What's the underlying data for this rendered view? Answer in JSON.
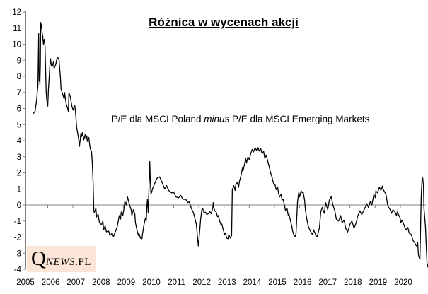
{
  "title": "Różnica w wycenach akcji",
  "annotation": {
    "prefix": "P/E dla MSCI Poland ",
    "emphasis": "minus",
    "suffix": " P/E dla MSCI Emerging Markets"
  },
  "logo": {
    "initial": "Q",
    "name": "NEWS",
    "tld": ".PL"
  },
  "colors": {
    "line": "#000000",
    "axis": "#808080",
    "zero_line": "#808080",
    "tick_label": "#000000",
    "logo_bg": "#FBE5D6",
    "background": "#FFFFFF"
  },
  "chart_data": {
    "type": "line",
    "title": "Różnica w wycenach akcji",
    "annotation": "P/E dla MSCI Poland minus P/E dla MSCI Emerging Markets",
    "legend": "none",
    "grid": "zero-line-only",
    "x_axis": {
      "labels": [
        "2005",
        "2006",
        "2007",
        "2008",
        "2009",
        "2010",
        "2011",
        "2012",
        "2013",
        "2014",
        "2015",
        "2016",
        "2017",
        "2018",
        "2019",
        "2020"
      ],
      "range": [
        2005.0,
        2021.0
      ]
    },
    "y_axis": {
      "min": -4,
      "max": 12,
      "step": 1,
      "labels": [
        12,
        11,
        10,
        9,
        8,
        7,
        6,
        5,
        4,
        3,
        2,
        1,
        0,
        -1,
        -2,
        -3,
        -4
      ]
    },
    "points": [
      [
        2005.31,
        5.7
      ],
      [
        2005.37,
        5.85
      ],
      [
        2005.39,
        6.1
      ],
      [
        2005.42,
        6.4
      ],
      [
        2005.45,
        6.9
      ],
      [
        2005.48,
        7.4
      ],
      [
        2005.51,
        10.65
      ],
      [
        2005.53,
        7.7
      ],
      [
        2005.55,
        8.3
      ],
      [
        2005.56,
        7.5
      ],
      [
        2005.58,
        8.8
      ],
      [
        2005.59,
        11.35
      ],
      [
        2005.62,
        11.15
      ],
      [
        2005.65,
        10.7
      ],
      [
        2005.67,
        10.5
      ],
      [
        2005.7,
        10.0
      ],
      [
        2005.73,
        10.3
      ],
      [
        2005.76,
        9.9
      ],
      [
        2005.79,
        8.2
      ],
      [
        2005.81,
        7.0
      ],
      [
        2005.84,
        6.4
      ],
      [
        2005.87,
        6.15
      ],
      [
        2005.9,
        7.2
      ],
      [
        2005.96,
        8.8
      ],
      [
        2005.98,
        9.1
      ],
      [
        2006.01,
        8.7
      ],
      [
        2006.04,
        8.6
      ],
      [
        2006.1,
        8.9
      ],
      [
        2006.12,
        8.5
      ],
      [
        2006.18,
        8.7
      ],
      [
        2006.21,
        8.9
      ],
      [
        2006.24,
        9.15
      ],
      [
        2006.26,
        9.2
      ],
      [
        2006.32,
        9.0
      ],
      [
        2006.38,
        7.8
      ],
      [
        2006.4,
        7.2
      ],
      [
        2006.46,
        6.9
      ],
      [
        2006.52,
        6.6
      ],
      [
        2006.54,
        7.0
      ],
      [
        2006.6,
        6.3
      ],
      [
        2006.66,
        6.0
      ],
      [
        2006.69,
        5.8
      ],
      [
        2006.71,
        7.0
      ],
      [
        2006.77,
        6.7
      ],
      [
        2006.8,
        6.4
      ],
      [
        2006.83,
        6.15
      ],
      [
        2006.88,
        5.9
      ],
      [
        2006.94,
        6.2
      ],
      [
        2006.97,
        5.85
      ],
      [
        2007.02,
        4.8
      ],
      [
        2007.08,
        4.3
      ],
      [
        2007.11,
        3.95
      ],
      [
        2007.13,
        3.65
      ],
      [
        2007.19,
        4.5
      ],
      [
        2007.22,
        4.25
      ],
      [
        2007.25,
        4.5
      ],
      [
        2007.3,
        4.05
      ],
      [
        2007.36,
        4.4
      ],
      [
        2007.39,
        4.1
      ],
      [
        2007.42,
        4.3
      ],
      [
        2007.44,
        3.95
      ],
      [
        2007.5,
        4.2
      ],
      [
        2007.53,
        3.8
      ],
      [
        2007.56,
        3.5
      ],
      [
        2007.61,
        3.3
      ],
      [
        2007.64,
        2.6
      ],
      [
        2007.67,
        1.4
      ],
      [
        2007.7,
        -0.3
      ],
      [
        2007.72,
        -0.5
      ],
      [
        2007.78,
        -0.2
      ],
      [
        2007.81,
        -0.75
      ],
      [
        2007.87,
        -0.57
      ],
      [
        2007.92,
        -1.1
      ],
      [
        2008.01,
        -1.23
      ],
      [
        2008.06,
        -1.0
      ],
      [
        2008.09,
        -1.54
      ],
      [
        2008.15,
        -1.3
      ],
      [
        2008.2,
        -1.67
      ],
      [
        2008.29,
        -1.62
      ],
      [
        2008.34,
        -1.9
      ],
      [
        2008.43,
        -1.75
      ],
      [
        2008.48,
        -1.97
      ],
      [
        2008.51,
        -1.84
      ],
      [
        2008.57,
        -1.6
      ],
      [
        2008.62,
        -1.4
      ],
      [
        2008.65,
        -1.18
      ],
      [
        2008.71,
        -0.66
      ],
      [
        2008.76,
        -0.88
      ],
      [
        2008.79,
        -0.44
      ],
      [
        2008.85,
        -0.66
      ],
      [
        2008.9,
        -0.22
      ],
      [
        2008.93,
        0.22
      ],
      [
        2008.99,
        0.0
      ],
      [
        2009.04,
        0.5
      ],
      [
        2009.1,
        0.1
      ],
      [
        2009.19,
        -0.35
      ],
      [
        2009.21,
        -0.66
      ],
      [
        2009.27,
        -0.3
      ],
      [
        2009.33,
        -0.57
      ],
      [
        2009.35,
        -1.1
      ],
      [
        2009.41,
        -1.54
      ],
      [
        2009.47,
        -1.9
      ],
      [
        2009.49,
        -1.75
      ],
      [
        2009.55,
        -2.06
      ],
      [
        2009.61,
        -2.1
      ],
      [
        2009.63,
        -1.84
      ],
      [
        2009.69,
        -1.23
      ],
      [
        2009.75,
        -0.8
      ],
      [
        2009.78,
        -1.0
      ],
      [
        2009.8,
        -0.22
      ],
      [
        2009.83,
        0.35
      ],
      [
        2009.86,
        -0.5
      ],
      [
        2009.92,
        2.7
      ],
      [
        2009.94,
        1.6
      ],
      [
        2009.97,
        0.66
      ],
      [
        2010.03,
        1.0
      ],
      [
        2010.11,
        1.3
      ],
      [
        2010.17,
        1.55
      ],
      [
        2010.22,
        1.68
      ],
      [
        2010.31,
        1.75
      ],
      [
        2010.37,
        1.55
      ],
      [
        2010.45,
        1.25
      ],
      [
        2010.51,
        1.0
      ],
      [
        2010.59,
        1.2
      ],
      [
        2010.67,
        0.9
      ],
      [
        2010.79,
        0.75
      ],
      [
        2010.87,
        0.8
      ],
      [
        2010.96,
        0.5
      ],
      [
        2011.07,
        0.45
      ],
      [
        2011.15,
        0.6
      ],
      [
        2011.24,
        0.35
      ],
      [
        2011.35,
        0.35
      ],
      [
        2011.43,
        0.15
      ],
      [
        2011.49,
        0.2
      ],
      [
        2011.57,
        -0.2
      ],
      [
        2011.66,
        -0.5
      ],
      [
        2011.74,
        -1.0
      ],
      [
        2011.77,
        -1.2
      ],
      [
        2011.83,
        -2.2
      ],
      [
        2011.85,
        -2.55
      ],
      [
        2011.91,
        -1.5
      ],
      [
        2011.94,
        -0.9
      ],
      [
        2011.99,
        -0.3
      ],
      [
        2012.02,
        -0.2
      ],
      [
        2012.08,
        -0.5
      ],
      [
        2012.13,
        -0.45
      ],
      [
        2012.19,
        -0.6
      ],
      [
        2012.25,
        -0.55
      ],
      [
        2012.3,
        -0.4
      ],
      [
        2012.36,
        -0.55
      ],
      [
        2012.42,
        -0.2
      ],
      [
        2012.44,
        0.15
      ],
      [
        2012.47,
        -0.2
      ],
      [
        2012.5,
        -0.35
      ],
      [
        2012.56,
        -0.44
      ],
      [
        2012.61,
        -0.73
      ],
      [
        2012.64,
        -0.66
      ],
      [
        2012.7,
        -1.0
      ],
      [
        2012.75,
        -1.23
      ],
      [
        2012.78,
        -1.18
      ],
      [
        2012.84,
        -1.54
      ],
      [
        2012.89,
        -1.84
      ],
      [
        2012.92,
        -1.75
      ],
      [
        2012.98,
        -2.06
      ],
      [
        2013.03,
        -2.1
      ],
      [
        2013.06,
        -1.84
      ],
      [
        2013.12,
        -2.06
      ],
      [
        2013.17,
        -1.9
      ],
      [
        2013.2,
        0.95
      ],
      [
        2013.26,
        1.2
      ],
      [
        2013.31,
        0.9
      ],
      [
        2013.34,
        1.25
      ],
      [
        2013.4,
        1.4
      ],
      [
        2013.45,
        1.1
      ],
      [
        2013.48,
        1.45
      ],
      [
        2013.54,
        1.8
      ],
      [
        2013.6,
        2.3
      ],
      [
        2013.62,
        2.1
      ],
      [
        2013.68,
        2.5
      ],
      [
        2013.73,
        2.9
      ],
      [
        2013.76,
        2.6
      ],
      [
        2013.82,
        3.0
      ],
      [
        2013.88,
        2.8
      ],
      [
        2013.93,
        3.2
      ],
      [
        2013.99,
        3.45
      ],
      [
        2014.04,
        3.3
      ],
      [
        2014.1,
        3.55
      ],
      [
        2014.16,
        3.4
      ],
      [
        2014.21,
        3.6
      ],
      [
        2014.27,
        3.35
      ],
      [
        2014.33,
        3.5
      ],
      [
        2014.38,
        3.2
      ],
      [
        2014.44,
        3.35
      ],
      [
        2014.49,
        2.9
      ],
      [
        2014.55,
        3.1
      ],
      [
        2014.61,
        2.7
      ],
      [
        2014.66,
        2.4
      ],
      [
        2014.72,
        2.0
      ],
      [
        2014.78,
        1.7
      ],
      [
        2014.8,
        1.54
      ],
      [
        2014.86,
        1.25
      ],
      [
        2014.89,
        1.3
      ],
      [
        2014.94,
        0.95
      ],
      [
        2015.0,
        1.1
      ],
      [
        2015.03,
        0.75
      ],
      [
        2015.08,
        0.5
      ],
      [
        2015.14,
        0.66
      ],
      [
        2015.17,
        0.3
      ],
      [
        2015.22,
        0.35
      ],
      [
        2015.28,
        -0.1
      ],
      [
        2015.31,
        -0.35
      ],
      [
        2015.37,
        -0.2
      ],
      [
        2015.42,
        -0.66
      ],
      [
        2015.45,
        -0.57
      ],
      [
        2015.51,
        -1.0
      ],
      [
        2015.56,
        -1.3
      ],
      [
        2015.59,
        -1.6
      ],
      [
        2015.65,
        -1.9
      ],
      [
        2015.7,
        -1.97
      ],
      [
        2015.73,
        -1.75
      ],
      [
        2015.79,
        0.22
      ],
      [
        2015.84,
        0.8
      ],
      [
        2015.87,
        0.5
      ],
      [
        2015.93,
        0.88
      ],
      [
        2015.98,
        0.75
      ],
      [
        2016.01,
        0.8
      ],
      [
        2016.07,
        0.3
      ],
      [
        2016.1,
        -0.3
      ],
      [
        2016.15,
        -0.8
      ],
      [
        2016.21,
        -1.3
      ],
      [
        2016.29,
        -1.6
      ],
      [
        2016.38,
        -1.84
      ],
      [
        2016.43,
        -1.55
      ],
      [
        2016.52,
        -1.9
      ],
      [
        2016.57,
        -1.97
      ],
      [
        2016.66,
        -1.4
      ],
      [
        2016.71,
        -0.44
      ],
      [
        2016.77,
        -0.15
      ],
      [
        2016.85,
        -0.52
      ],
      [
        2016.91,
        0.14
      ],
      [
        2016.99,
        -0.3
      ],
      [
        2017.05,
        0.3
      ],
      [
        2017.13,
        0.52
      ],
      [
        2017.19,
        0.0
      ],
      [
        2017.27,
        -0.36
      ],
      [
        2017.33,
        -0.88
      ],
      [
        2017.42,
        -1.0
      ],
      [
        2017.5,
        -0.66
      ],
      [
        2017.56,
        -1.1
      ],
      [
        2017.64,
        -0.95
      ],
      [
        2017.7,
        -1.45
      ],
      [
        2017.78,
        -1.68
      ],
      [
        2017.87,
        -1.2
      ],
      [
        2017.95,
        -1.0
      ],
      [
        2018.03,
        -1.45
      ],
      [
        2018.12,
        -1.1
      ],
      [
        2018.17,
        -0.73
      ],
      [
        2018.26,
        -0.37
      ],
      [
        2018.34,
        -0.6
      ],
      [
        2018.46,
        -0.2
      ],
      [
        2018.54,
        0.08
      ],
      [
        2018.6,
        -0.15
      ],
      [
        2018.68,
        0.22
      ],
      [
        2018.74,
        0.0
      ],
      [
        2018.82,
        0.65
      ],
      [
        2018.88,
        0.45
      ],
      [
        2018.9,
        0.88
      ],
      [
        2018.96,
        0.75
      ],
      [
        2019.04,
        1.1
      ],
      [
        2019.1,
        0.9
      ],
      [
        2019.16,
        1.18
      ],
      [
        2019.18,
        1.0
      ],
      [
        2019.3,
        0.66
      ],
      [
        2019.33,
        0.37
      ],
      [
        2019.38,
        -0.08
      ],
      [
        2019.47,
        -0.3
      ],
      [
        2019.52,
        -0.52
      ],
      [
        2019.58,
        -0.3
      ],
      [
        2019.66,
        -0.44
      ],
      [
        2019.72,
        -0.66
      ],
      [
        2019.75,
        -0.44
      ],
      [
        2019.86,
        -0.8
      ],
      [
        2019.89,
        -1.1
      ],
      [
        2019.94,
        -0.95
      ],
      [
        2020.03,
        -1.3
      ],
      [
        2020.08,
        -1.55
      ],
      [
        2020.17,
        -1.4
      ],
      [
        2020.22,
        -1.75
      ],
      [
        2020.31,
        -1.84
      ],
      [
        2020.37,
        -2.2
      ],
      [
        2020.42,
        -2.3
      ],
      [
        2020.51,
        -2.55
      ],
      [
        2020.56,
        -2.33
      ],
      [
        2020.59,
        -3.1
      ],
      [
        2020.65,
        -3.4
      ],
      [
        2020.7,
        0.5
      ],
      [
        2020.73,
        1.55
      ],
      [
        2020.76,
        1.68
      ],
      [
        2020.79,
        1.2
      ],
      [
        2020.81,
        -0.2
      ],
      [
        2020.84,
        -0.8
      ],
      [
        2020.87,
        -1.4
      ],
      [
        2020.9,
        -2.5
      ],
      [
        2020.93,
        -3.6
      ],
      [
        2020.96,
        -3.85
      ],
      [
        2020.97,
        -3.7
      ]
    ]
  }
}
